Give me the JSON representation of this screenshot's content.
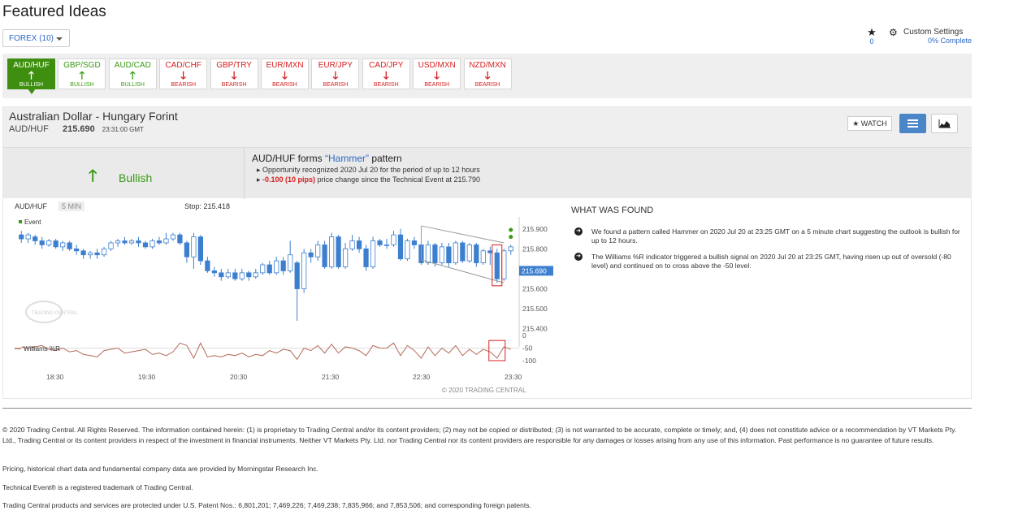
{
  "page": {
    "title": "Featured Ideas"
  },
  "filter": {
    "label": "FOREX (10)"
  },
  "favorites": {
    "count": "0"
  },
  "settings": {
    "label": "Custom Settings",
    "progress": "0% Complete"
  },
  "pairs": [
    {
      "symbol": "AUD/HUF",
      "signal": "BULLISH",
      "dir": "up",
      "selected": true
    },
    {
      "symbol": "GBP/SGD",
      "signal": "BULLISH",
      "dir": "up"
    },
    {
      "symbol": "AUD/CAD",
      "signal": "BULLISH",
      "dir": "up"
    },
    {
      "symbol": "CAD/CHF",
      "signal": "BEARISH",
      "dir": "down"
    },
    {
      "symbol": "GBP/TRY",
      "signal": "BEARISH",
      "dir": "down"
    },
    {
      "symbol": "EUR/MXN",
      "signal": "BEARISH",
      "dir": "down"
    },
    {
      "symbol": "EUR/JPY",
      "signal": "BEARISH",
      "dir": "down"
    },
    {
      "symbol": "CAD/JPY",
      "signal": "BEARISH",
      "dir": "down"
    },
    {
      "symbol": "USD/MXN",
      "signal": "BEARISH",
      "dir": "down"
    },
    {
      "symbol": "NZD/MXN",
      "signal": "BEARISH",
      "dir": "down"
    }
  ],
  "instrument": {
    "name": "Australian Dollar - Hungary Forint",
    "symbol": "AUD/HUF",
    "price": "215.690",
    "time": "23:31:00 GMT",
    "watch_label": "WATCH"
  },
  "signal": {
    "label": "Bullish"
  },
  "event": {
    "title_prefix": "AUD/HUF forms ",
    "pattern": "“Hammer”",
    "title_suffix": " pattern",
    "line1": "Opportunity recognized 2020 Jul 20 for the period of up to 12 hours",
    "change": "-0.100 (10 pips)",
    "line2_suffix": " price change since the Technical Event at 215.790"
  },
  "chart_data": {
    "type": "candlestick",
    "symbol": "AUD/HUF",
    "interval": "5 MIN",
    "stop": "Stop: 215.418",
    "event_legend": "Event",
    "indicator_legend": "Williams %R",
    "watermark": "TRADING CENTRAL",
    "copyright": "© 2020 TRADING CENTRAL",
    "current_price": "215.690",
    "y_ticks": [
      "215.900",
      "215.800",
      "215.600",
      "215.500",
      "215.400"
    ],
    "wr_ticks": [
      "0",
      "-50",
      "-100"
    ],
    "x_ticks": [
      "18:30",
      "19:30",
      "20:30",
      "21:30",
      "22:30",
      "23:30"
    ],
    "ylim": [
      215.35,
      215.96
    ],
    "wr_lim": [
      -100,
      0
    ],
    "candles": [
      [
        215.87,
        215.85,
        215.89,
        215.83
      ],
      [
        215.85,
        215.87,
        215.88,
        215.83
      ],
      [
        215.86,
        215.84,
        215.87,
        215.82
      ],
      [
        215.84,
        215.82,
        215.86,
        215.8
      ],
      [
        215.82,
        215.84,
        215.85,
        215.81
      ],
      [
        215.84,
        215.81,
        215.85,
        215.8
      ],
      [
        215.81,
        215.83,
        215.84,
        215.79
      ],
      [
        215.83,
        215.8,
        215.84,
        215.79
      ],
      [
        215.8,
        215.79,
        215.82,
        215.77
      ],
      [
        215.79,
        215.77,
        215.8,
        215.75
      ],
      [
        215.77,
        215.78,
        215.79,
        215.75
      ],
      [
        215.78,
        215.77,
        215.8,
        215.75
      ],
      [
        215.77,
        215.8,
        215.81,
        215.76
      ],
      [
        215.8,
        215.83,
        215.84,
        215.79
      ],
      [
        215.83,
        215.84,
        215.85,
        215.81
      ],
      [
        215.84,
        215.83,
        215.86,
        215.82
      ],
      [
        215.83,
        215.84,
        215.85,
        215.82
      ],
      [
        215.84,
        215.83,
        215.86,
        215.81
      ],
      [
        215.83,
        215.81,
        215.84,
        215.8
      ],
      [
        215.81,
        215.84,
        215.85,
        215.8
      ],
      [
        215.84,
        215.83,
        215.86,
        215.82
      ],
      [
        215.83,
        215.85,
        215.88,
        215.82
      ],
      [
        215.85,
        215.87,
        215.88,
        215.84
      ],
      [
        215.87,
        215.83,
        215.88,
        215.82
      ],
      [
        215.83,
        215.76,
        215.84,
        215.73
      ],
      [
        215.76,
        215.86,
        215.88,
        215.7
      ],
      [
        215.86,
        215.74,
        215.87,
        215.72
      ],
      [
        215.74,
        215.69,
        215.76,
        215.68
      ],
      [
        215.69,
        215.68,
        215.71,
        215.66
      ],
      [
        215.68,
        215.66,
        215.7,
        215.64
      ],
      [
        215.66,
        215.68,
        215.7,
        215.65
      ],
      [
        215.68,
        215.65,
        215.7,
        215.64
      ],
      [
        215.65,
        215.68,
        215.7,
        215.64
      ],
      [
        215.68,
        215.66,
        215.69,
        215.64
      ],
      [
        215.66,
        215.68,
        215.7,
        215.65
      ],
      [
        215.68,
        215.72,
        215.73,
        215.67
      ],
      [
        215.72,
        215.68,
        215.74,
        215.67
      ],
      [
        215.68,
        215.74,
        215.76,
        215.67
      ],
      [
        215.74,
        215.69,
        215.76,
        215.67
      ],
      [
        215.69,
        215.77,
        215.84,
        215.68
      ],
      [
        215.73,
        215.6,
        215.74,
        215.44
      ],
      [
        215.6,
        215.78,
        215.8,
        215.58
      ],
      [
        215.78,
        215.76,
        215.8,
        215.73
      ],
      [
        215.76,
        215.82,
        215.84,
        215.74
      ],
      [
        215.82,
        215.71,
        215.84,
        215.7
      ],
      [
        215.71,
        215.86,
        215.88,
        215.7
      ],
      [
        215.86,
        215.71,
        215.87,
        215.7
      ],
      [
        215.71,
        215.8,
        215.83,
        215.7
      ],
      [
        215.8,
        215.84,
        215.87,
        215.79
      ],
      [
        215.84,
        215.8,
        215.86,
        215.78
      ],
      [
        215.8,
        215.71,
        215.82,
        215.69
      ],
      [
        215.71,
        215.84,
        215.86,
        215.7
      ],
      [
        215.84,
        215.82,
        215.85,
        215.81
      ],
      [
        215.82,
        215.82,
        215.85,
        215.8
      ],
      [
        215.82,
        215.87,
        215.89,
        215.81
      ],
      [
        215.87,
        215.75,
        215.9,
        215.74
      ],
      [
        215.75,
        215.84,
        215.85,
        215.74
      ],
      [
        215.84,
        215.82,
        215.86,
        215.8
      ],
      [
        215.82,
        215.73,
        215.83,
        215.72
      ],
      [
        215.73,
        215.82,
        215.84,
        215.72
      ],
      [
        215.82,
        215.73,
        215.83,
        215.71
      ],
      [
        215.73,
        215.81,
        215.83,
        215.72
      ],
      [
        215.81,
        215.73,
        215.83,
        215.71
      ],
      [
        215.73,
        215.83,
        215.84,
        215.72
      ],
      [
        215.83,
        215.74,
        215.84,
        215.73
      ],
      [
        215.74,
        215.82,
        215.83,
        215.73
      ],
      [
        215.82,
        215.73,
        215.83,
        215.71
      ],
      [
        215.73,
        215.79,
        215.8,
        215.72
      ],
      [
        215.79,
        215.78,
        215.81,
        215.72
      ],
      [
        215.78,
        215.65,
        215.8,
        215.63
      ],
      [
        215.65,
        215.79,
        215.8,
        215.64
      ],
      [
        215.79,
        215.81,
        215.82,
        215.77
      ]
    ],
    "williams_r": [
      -45,
      -50,
      -45,
      -40,
      -55,
      -60,
      -50,
      -65,
      -60,
      -75,
      -80,
      -85,
      -60,
      -55,
      -50,
      -70,
      -65,
      -60,
      -55,
      -75,
      -70,
      -80,
      -65,
      -30,
      -40,
      -90,
      -30,
      -85,
      -80,
      -85,
      -75,
      -80,
      -70,
      -85,
      -75,
      -80,
      -60,
      -70,
      -55,
      -60,
      -95,
      -50,
      -60,
      -40,
      -70,
      -35,
      -70,
      -45,
      -50,
      -60,
      -80,
      -40,
      -50,
      -50,
      -30,
      -80,
      -40,
      -60,
      -90,
      -45,
      -80,
      -50,
      -70,
      -40,
      -80,
      -55,
      -75,
      -55,
      -65,
      -90,
      -45,
      -55
    ],
    "annotations": {
      "triangle": "converging",
      "event_markers": 2
    }
  },
  "found": {
    "title": "WHAT WAS FOUND",
    "items": [
      "We found a pattern called Hammer on 2020 Jul 20 at 23:25 GMT on a 5 minute chart suggesting the outlook is bullish for up to 12 hours.",
      "The Williams %R indicator triggered a bullish signal on 2020 Jul 20 at 23:25 GMT, having risen up out of oversold (-80 level) and continued on to cross above the -50 level."
    ]
  },
  "footer": [
    "© 2020 Trading Central. All Rights Reserved. The information contained herein: (1) is proprietary to Trading Central and/or its content providers; (2) may not be copied or distributed; (3) is not warranted to be accurate, complete or timely; and, (4) does not constitute advice or a recommendation by VT Markets Pty. Ltd., Trading Central or its content providers in respect of the investment in financial instruments. Neither VT Markets Pty. Ltd. nor Trading Central nor its content providers are responsible for any damages or losses arising from any use of this information. Past performance is no guarantee of future results.",
    "Pricing, historical chart data and fundamental company data are provided by Morningstar Research Inc.",
    "Technical Event® is a registered trademark of Trading Central.",
    "Trading Central products and services are protected under U.S. Patent Nos.: 6,801,201; 7,469,226; 7,469,238; 7,835,966; and 7,853,506; and corresponding foreign patents."
  ],
  "colors": {
    "bull": "#3a9a14",
    "bear": "#d62020",
    "candle": "#3d7fcf",
    "accent": "#2d68c4",
    "wr_line": "#b46a5a"
  }
}
